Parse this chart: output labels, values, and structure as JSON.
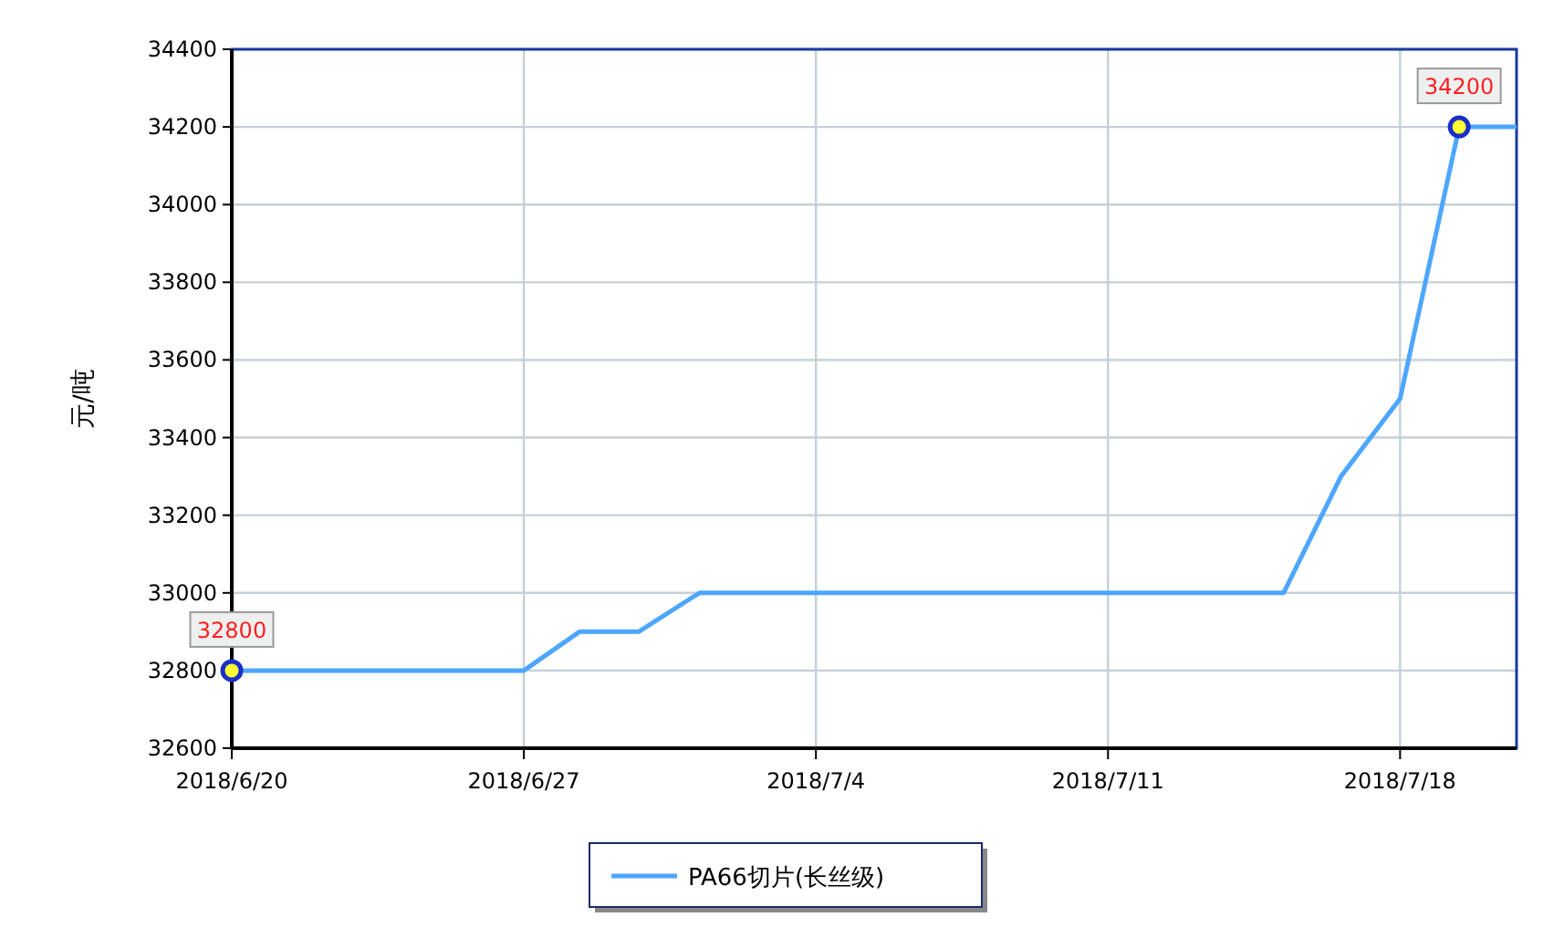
{
  "chart_data": {
    "type": "line",
    "ylabel": "元/吨",
    "x": [
      "2018-06-20",
      "2018-06-27",
      "2018-06-28T08:00",
      "2018-06-29T18:00",
      "2018-07-01T05:00",
      "2018-07-15T05:00",
      "2018-07-16T14:00",
      "2018-07-18",
      "2018-07-19T10:00",
      "2018-07-20T19:00"
    ],
    "series": [
      {
        "name": "PA66切片(长丝级)",
        "color": "#4da6ff",
        "values": [
          32800,
          32800,
          32900,
          32900,
          33000,
          33000,
          33300,
          33500,
          34200,
          34200
        ]
      }
    ],
    "annotations": [
      {
        "text": "32800",
        "x": "2018-06-20",
        "y": 32800
      },
      {
        "text": "34200",
        "x": "2018-07-19T10:00",
        "y": 34200
      }
    ],
    "xlim": [
      "2018-06-20",
      "2018-07-20T19:00"
    ],
    "xticks": [
      {
        "value": "2018-06-20",
        "label": "2018/6/20"
      },
      {
        "value": "2018-06-27",
        "label": "2018/6/27"
      },
      {
        "value": "2018-07-04",
        "label": "2018/7/4"
      },
      {
        "value": "2018-07-11",
        "label": "2018/7/11"
      },
      {
        "value": "2018-07-18",
        "label": "2018/7/18"
      }
    ],
    "ylim": [
      32600,
      34400
    ],
    "yticks": [
      32600,
      32800,
      33000,
      33200,
      33400,
      33600,
      33800,
      34000,
      34200,
      34400
    ],
    "grid": true,
    "legend": "bottom",
    "marker": "none",
    "line_style": "solid"
  }
}
